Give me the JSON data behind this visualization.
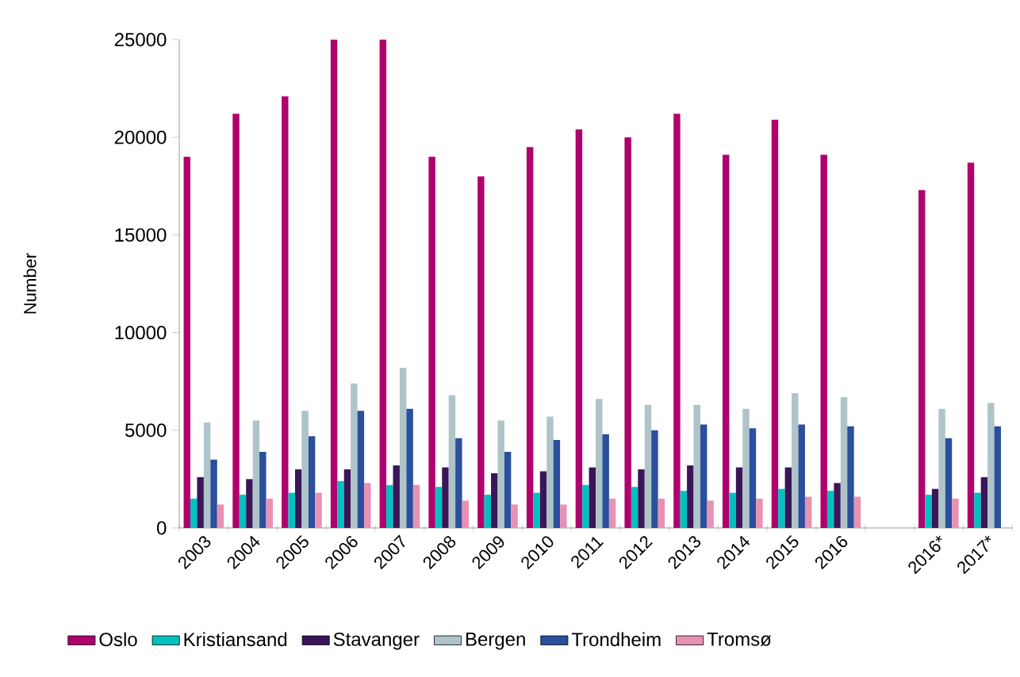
{
  "chart_data": {
    "type": "bar",
    "ylabel": "Number",
    "categories": [
      "2003",
      "2004",
      "2005",
      "2006",
      "2007",
      "2008",
      "2009",
      "2010",
      "2011",
      "2012",
      "2013",
      "2014",
      "2015",
      "2016",
      null,
      "2016*",
      "2017*"
    ],
    "series": [
      {
        "name": "Oslo",
        "color": "#b0006e",
        "values": [
          19000,
          21200,
          22100,
          25000,
          25000,
          19000,
          18000,
          19500,
          20400,
          20000,
          21200,
          19100,
          20900,
          19100,
          null,
          17300,
          18700
        ]
      },
      {
        "name": "Kristiansand",
        "color": "#00c0c0",
        "values": [
          1500,
          1700,
          1800,
          2400,
          2200,
          2100,
          1700,
          1800,
          2200,
          2100,
          1900,
          1800,
          2000,
          1900,
          null,
          1700,
          1800
        ]
      },
      {
        "name": "Stavanger",
        "color": "#3a1558",
        "values": [
          2600,
          2500,
          3000,
          3000,
          3200,
          3100,
          2800,
          2900,
          3100,
          3000,
          3200,
          3100,
          3100,
          2300,
          null,
          2000,
          2600
        ]
      },
      {
        "name": "Bergen",
        "color": "#aec4c8",
        "values": [
          5400,
          5500,
          6000,
          7400,
          8200,
          6800,
          5500,
          5700,
          6600,
          6300,
          6300,
          6100,
          6900,
          6700,
          null,
          6100,
          6400
        ]
      },
      {
        "name": "Trondheim",
        "color": "#2a4f9c",
        "values": [
          3500,
          3900,
          4700,
          6000,
          6100,
          4600,
          3900,
          4500,
          4800,
          5000,
          5300,
          5100,
          5300,
          5200,
          null,
          4600,
          5200
        ]
      },
      {
        "name": "Tromsø",
        "color": "#e891b4",
        "values": [
          1200,
          1500,
          1800,
          2300,
          2200,
          1400,
          1200,
          1200,
          1500,
          1500,
          1400,
          1500,
          1600,
          1600,
          null,
          1500,
          null
        ]
      }
    ],
    "ylim": [
      0,
      25000
    ],
    "yticks": [
      0,
      5000,
      10000,
      15000,
      20000,
      25000
    ],
    "legend": "bottom"
  }
}
